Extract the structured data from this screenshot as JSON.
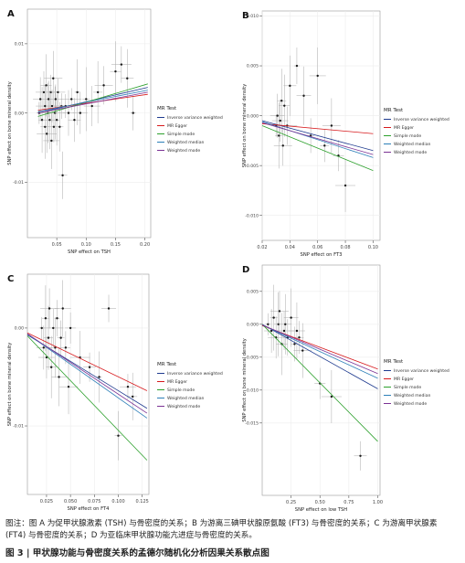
{
  "legend_title": "MR Test",
  "legend_items": [
    {
      "label": "Inverse variance weighted",
      "color": "#1f3b8f"
    },
    {
      "label": "MR Egger",
      "color": "#d7191c"
    },
    {
      "label": "Simple mode",
      "color": "#2ca02c"
    },
    {
      "label": "Weighted median",
      "color": "#2c7fb8"
    },
    {
      "label": "Weighted mode",
      "color": "#7b3294"
    }
  ],
  "chart_data": [
    {
      "panel": "A",
      "type": "scatter",
      "xlabel": "SNP effect on TSH",
      "ylabel": "SNP effect on bone mineral density",
      "xticks": [
        0.05,
        0.1,
        0.15,
        0.2
      ],
      "xtick_labels": [
        "0.05",
        "0.10",
        "0.15",
        "0.20"
      ],
      "yticks": [
        -0.01,
        0.0,
        0.01
      ],
      "ytick_labels": [
        "-0.01",
        "0.00",
        "0.01"
      ],
      "xlim": [
        0.0,
        0.21
      ],
      "ylim": [
        -0.018,
        0.015
      ],
      "points": [
        [
          0.02,
          0.0
        ],
        [
          0.022,
          0.002
        ],
        [
          0.025,
          -0.001
        ],
        [
          0.028,
          0.003
        ],
        [
          0.03,
          -0.002
        ],
        [
          0.03,
          0.001
        ],
        [
          0.032,
          0.004
        ],
        [
          0.033,
          -0.003
        ],
        [
          0.035,
          0.0
        ],
        [
          0.036,
          0.002
        ],
        [
          0.038,
          -0.001
        ],
        [
          0.04,
          0.003
        ],
        [
          0.041,
          -0.004
        ],
        [
          0.042,
          0.001
        ],
        [
          0.044,
          0.005
        ],
        [
          0.045,
          -0.002
        ],
        [
          0.047,
          0.0
        ],
        [
          0.048,
          0.002
        ],
        [
          0.05,
          -0.001
        ],
        [
          0.052,
          0.003
        ],
        [
          0.055,
          -0.002
        ],
        [
          0.058,
          0.001
        ],
        [
          0.06,
          -0.009
        ],
        [
          0.065,
          0.001
        ],
        [
          0.07,
          0.0
        ],
        [
          0.075,
          0.002
        ],
        [
          0.08,
          -0.001
        ],
        [
          0.085,
          0.003
        ],
        [
          0.09,
          0.0
        ],
        [
          0.1,
          0.002
        ],
        [
          0.11,
          0.001
        ],
        [
          0.12,
          0.003
        ],
        [
          0.13,
          0.004
        ],
        [
          0.15,
          0.006
        ],
        [
          0.16,
          0.007
        ],
        [
          0.17,
          0.005
        ],
        [
          0.18,
          0.0
        ]
      ],
      "lines": [
        {
          "name": "Inverse variance weighted",
          "x": [
            0.018,
            0.205
          ],
          "y": [
            0.0,
            0.0037
          ]
        },
        {
          "name": "MR Egger",
          "x": [
            0.018,
            0.205
          ],
          "y": [
            0.0004,
            0.0027
          ]
        },
        {
          "name": "Simple mode",
          "x": [
            0.018,
            0.205
          ],
          "y": [
            -0.0005,
            0.0042
          ]
        },
        {
          "name": "Weighted median",
          "x": [
            0.018,
            0.205
          ],
          "y": [
            0.0002,
            0.0033
          ]
        },
        {
          "name": "Weighted mode",
          "x": [
            0.018,
            0.205
          ],
          "y": [
            0.0,
            0.003
          ]
        }
      ]
    },
    {
      "panel": "B",
      "type": "scatter",
      "xlabel": "SNP effect on FT3",
      "ylabel": "SNP effect on bone mineral density",
      "xticks": [
        0.02,
        0.04,
        0.06,
        0.08,
        0.1
      ],
      "xtick_labels": [
        "0.02",
        "0.04",
        "0.06",
        "0.08",
        "0.10"
      ],
      "yticks": [
        0.01,
        0.005,
        0.0,
        -0.005,
        -0.01
      ],
      "ytick_labels": [
        "0.010",
        "0.005",
        "0.000",
        "-0.005",
        "-0.010"
      ],
      "xlim": [
        0.02,
        0.105
      ],
      "ylim": [
        -0.0125,
        0.0105
      ],
      "points": [
        [
          0.03,
          -0.001
        ],
        [
          0.031,
          0.0
        ],
        [
          0.032,
          -0.002
        ],
        [
          0.033,
          -0.0005
        ],
        [
          0.034,
          0.0015
        ],
        [
          0.035,
          -0.003
        ],
        [
          0.036,
          0.001
        ],
        [
          0.038,
          -0.001
        ],
        [
          0.04,
          0.003
        ],
        [
          0.045,
          0.005
        ],
        [
          0.05,
          0.002
        ],
        [
          0.055,
          -0.002
        ],
        [
          0.06,
          0.004
        ],
        [
          0.065,
          -0.003
        ],
        [
          0.07,
          -0.001
        ],
        [
          0.075,
          -0.004
        ],
        [
          0.08,
          -0.007
        ]
      ],
      "lines": [
        {
          "name": "Inverse variance weighted",
          "x": [
            0.02,
            0.1
          ],
          "y": [
            -0.0005,
            -0.0035
          ]
        },
        {
          "name": "MR Egger",
          "x": [
            0.02,
            0.1
          ],
          "y": [
            -0.0008,
            -0.0018
          ]
        },
        {
          "name": "Simple mode",
          "x": [
            0.02,
            0.1
          ],
          "y": [
            -0.001,
            -0.0055
          ]
        },
        {
          "name": "Weighted median",
          "x": [
            0.02,
            0.1
          ],
          "y": [
            -0.0006,
            -0.0042
          ]
        },
        {
          "name": "Weighted mode",
          "x": [
            0.02,
            0.1
          ],
          "y": [
            -0.0007,
            -0.0039
          ]
        }
      ]
    },
    {
      "panel": "C",
      "type": "scatter",
      "xlabel": "SNP effect on FT4",
      "ylabel": "SNP effect on bone mineral density",
      "xticks": [
        0.025,
        0.05,
        0.075,
        0.1,
        0.125
      ],
      "xtick_labels": [
        "0.025",
        "0.050",
        "0.075",
        "0.100",
        "0.125"
      ],
      "yticks": [
        0.0,
        -0.01
      ],
      "ytick_labels": [
        "0.00",
        "-0.01"
      ],
      "xlim": [
        0.005,
        0.132
      ],
      "ylim": [
        -0.017,
        0.0055
      ],
      "points": [
        [
          0.02,
          0.0
        ],
        [
          0.022,
          -0.002
        ],
        [
          0.024,
          0.001
        ],
        [
          0.025,
          -0.003
        ],
        [
          0.027,
          -0.001
        ],
        [
          0.028,
          0.002
        ],
        [
          0.03,
          -0.004
        ],
        [
          0.032,
          0.0
        ],
        [
          0.034,
          -0.002
        ],
        [
          0.036,
          0.001
        ],
        [
          0.038,
          -0.005
        ],
        [
          0.04,
          -0.001
        ],
        [
          0.042,
          0.002
        ],
        [
          0.045,
          -0.002
        ],
        [
          0.048,
          -0.006
        ],
        [
          0.05,
          0.0
        ],
        [
          0.06,
          -0.003
        ],
        [
          0.07,
          -0.004
        ],
        [
          0.08,
          -0.005
        ],
        [
          0.09,
          0.002
        ],
        [
          0.1,
          -0.011
        ],
        [
          0.11,
          -0.006
        ],
        [
          0.115,
          -0.007
        ]
      ],
      "lines": [
        {
          "name": "Inverse variance weighted",
          "x": [
            0.005,
            0.13
          ],
          "y": [
            -0.0007,
            -0.0082
          ]
        },
        {
          "name": "MR Egger",
          "x": [
            0.005,
            0.13
          ],
          "y": [
            -0.0005,
            -0.0064
          ]
        },
        {
          "name": "Simple mode",
          "x": [
            0.005,
            0.13
          ],
          "y": [
            -0.0008,
            -0.0135
          ]
        },
        {
          "name": "Weighted median",
          "x": [
            0.005,
            0.13
          ],
          "y": [
            -0.0006,
            -0.0092
          ]
        },
        {
          "name": "Weighted mode",
          "x": [
            0.005,
            0.13
          ],
          "y": [
            -0.0006,
            -0.0087
          ]
        }
      ]
    },
    {
      "panel": "D",
      "type": "scatter",
      "xlabel": "SNP effect on low TSH",
      "ylabel": "SNP effect on bone mineral density",
      "xticks": [
        0.25,
        0.5,
        0.75,
        1.0
      ],
      "xtick_labels": [
        "0.25",
        "0.50",
        "0.75",
        "1.00"
      ],
      "yticks": [
        0.005,
        0.0,
        -0.005,
        -0.01,
        -0.015
      ],
      "ytick_labels": [
        "0.005",
        "0.000",
        "-0.005",
        "-0.010",
        "-0.015"
      ],
      "xlim": [
        0.0,
        1.02
      ],
      "ylim": [
        -0.026,
        0.009
      ],
      "points": [
        [
          0.05,
          0.0
        ],
        [
          0.08,
          -0.001
        ],
        [
          0.1,
          0.001
        ],
        [
          0.12,
          -0.002
        ],
        [
          0.14,
          0.0
        ],
        [
          0.15,
          0.002
        ],
        [
          0.17,
          -0.003
        ],
        [
          0.19,
          -0.001
        ],
        [
          0.2,
          0.0
        ],
        [
          0.22,
          -0.002
        ],
        [
          0.25,
          0.001
        ],
        [
          0.28,
          -0.003
        ],
        [
          0.3,
          -0.001
        ],
        [
          0.32,
          -0.002
        ],
        [
          0.35,
          -0.004
        ],
        [
          0.5,
          -0.009
        ],
        [
          0.6,
          -0.011
        ],
        [
          0.85,
          -0.02
        ]
      ],
      "lines": [
        {
          "name": "Inverse variance weighted",
          "x": [
            0.0,
            1.0
          ],
          "y": [
            0.0,
            -0.0098
          ]
        },
        {
          "name": "MR Egger",
          "x": [
            0.0,
            1.0
          ],
          "y": [
            -0.0002,
            -0.0068
          ]
        },
        {
          "name": "Simple mode",
          "x": [
            0.0,
            1.0
          ],
          "y": [
            0.0,
            -0.0178
          ]
        },
        {
          "name": "Weighted median",
          "x": [
            0.0,
            1.0
          ],
          "y": [
            -0.0001,
            -0.0082
          ]
        },
        {
          "name": "Weighted mode",
          "x": [
            0.0,
            1.0
          ],
          "y": [
            -0.0001,
            -0.0075
          ]
        }
      ]
    }
  ],
  "caption": {
    "note": "图注：图 A 为促甲状腺激素 (TSH) 与骨密度的关系；B 为游离三碘甲状腺原氨酸 (FT3) 与骨密度的关系；C 为游离甲状腺素 (FT4) 与骨密度的关系；D 为亚临床甲状腺功能亢进症与骨密度的关系。",
    "title": "图 3 | 甲状腺功能与骨密度关系的孟德尔随机化分析因果关系散点图"
  }
}
